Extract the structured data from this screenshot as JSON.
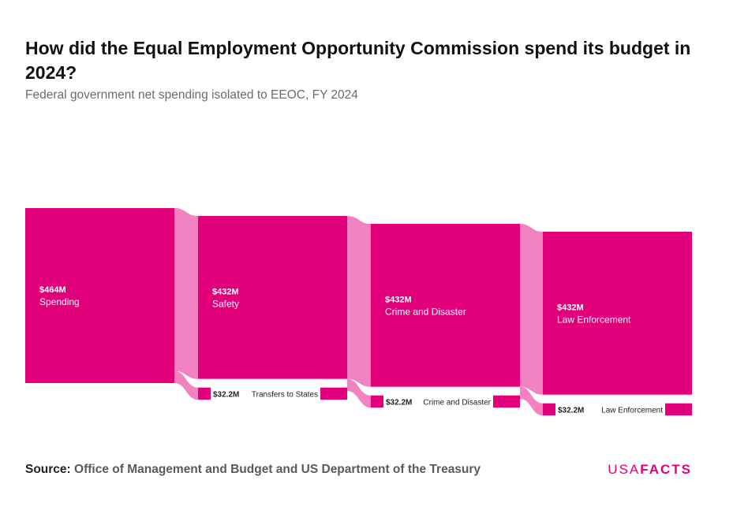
{
  "title": "How did the Equal Employment Opportunity Commission spend its budget in 2024?",
  "subtitle": "Federal government net spending isolated to EEOC, FY 2024",
  "source_label": "Source:",
  "source_text": "Office of Management and Budget and US Department of the Treasury",
  "brand": {
    "part1": "USA",
    "part2": "FACTS"
  },
  "colors": {
    "node": "#e2007a",
    "link": "#f283c0",
    "text_on_node": "#ffffff",
    "label": "#222222"
  },
  "chart_data": {
    "type": "sankey",
    "unit": "millions USD",
    "levels": [
      {
        "name": "Spending",
        "value": 464,
        "value_label": "$464M"
      },
      {
        "name": "Safety",
        "value": 432,
        "value_label": "$432M",
        "other": {
          "name": "Transfers to States",
          "value": 32.2,
          "value_label": "$32.2M"
        }
      },
      {
        "name": "Crime and Disaster",
        "value": 432,
        "value_label": "$432M",
        "other": {
          "name": "Crime and Disaster",
          "value": 32.2,
          "value_label": "$32.2M"
        }
      },
      {
        "name": "Law Enforcement",
        "value": 432,
        "value_label": "$432M",
        "other": {
          "name": "Law Enforcement",
          "value": 32.2,
          "value_label": "$32.2M"
        }
      }
    ]
  }
}
